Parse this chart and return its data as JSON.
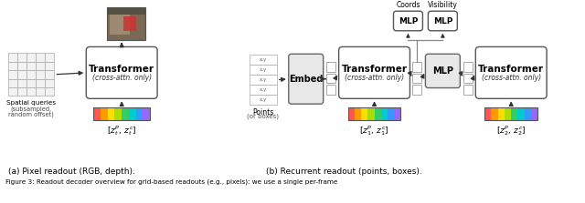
{
  "fig_width": 6.4,
  "fig_height": 2.23,
  "dpi": 100,
  "bg_color": "#ffffff",
  "rainbow_colors": [
    "#FF5555",
    "#FF9900",
    "#FFDD00",
    "#AADD00",
    "#33CC66",
    "#00CCCC",
    "#3399FF",
    "#9966FF"
  ],
  "caption_a": "(a) Pixel readout (RGB, depth).",
  "caption_b": "(b) Recurrent readout (points, boxes).",
  "figure_caption": "Figure 3: Readout decoder overview for grid-based readouts (e.g., pixels): we use a single per-frame",
  "trans1_label": "Transformer",
  "trans1_sub": "(cross-attn. only)",
  "embed_label": "Embed",
  "trans2_label": "Transformer",
  "trans2_sub": "(cross-attn. only)",
  "mlp_label": "MLP",
  "trans3_label": "Transformer",
  "trans3_sub": "(cross-attn. only)",
  "coords_label": "Coords",
  "visibility_label": "Visibility",
  "spatial_queries_1": "Spatial queries",
  "spatial_queries_2": "(subsampled,",
  "spatial_queries_3": "random offset)",
  "points_1": "Points",
  "points_2": "(or boxes)",
  "ztp_label": "[zₜᵖ, zₜᶜ]",
  "z1p_label": "[z₁ᵖ, z₁ᶜ]",
  "z2p_label": "[z₂ᵖ, z₂ᶜ]"
}
